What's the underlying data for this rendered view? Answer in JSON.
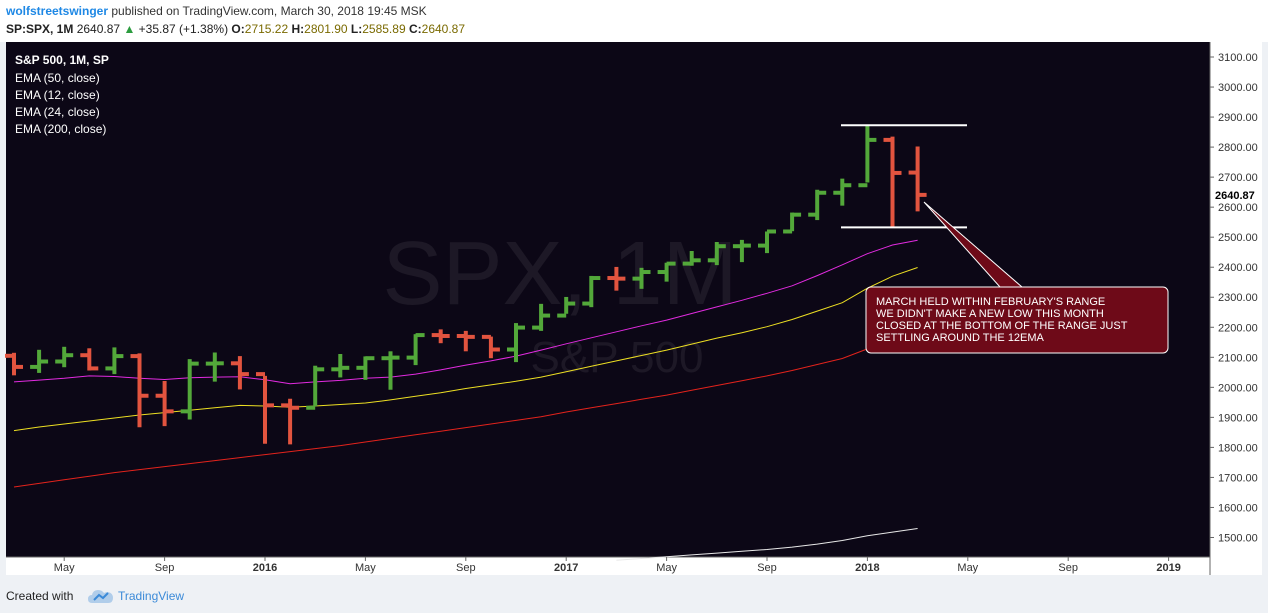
{
  "header": {
    "publisher": "wolfstreetswinger",
    "published_text": "published on TradingView.com, March 30, 2018 19:45 MSK",
    "symbol_line": "SP:SPX, 1M",
    "last": "2640.87",
    "change_arrow": "▲",
    "change": "+35.87 (+1.38%)",
    "o_label": "O:",
    "o_val": "2715.22",
    "h_label": "H:",
    "h_val": "2801.90",
    "l_label": "L:",
    "l_val": "2585.89",
    "c_label": "C:",
    "c_val": "2640.87"
  },
  "legend": {
    "title": "S&P 500, 1M, SP",
    "items": [
      "EMA (50, close)",
      "EMA (12, close)",
      "EMA (24, close)",
      "EMA (200, close)"
    ]
  },
  "watermark": {
    "big": "SPX, 1M",
    "small": "S&P 500"
  },
  "annotation": {
    "text": [
      "MARCH HELD WITHIN FEBRUARY'S RANGE",
      "WE DIDN'T MAKE A NEW LOW THIS MONTH",
      "CLOSED AT THE BOTTOM OF THE RANGE JUST",
      "SETTLING AROUND THE 12EMA"
    ]
  },
  "footer": {
    "created_with": "Created with",
    "brand": "TradingView"
  },
  "colors": {
    "background": "#0c0716",
    "up": "#53a83a",
    "down": "#e2543f",
    "ema12": "#e22be0",
    "ema24": "#eddf23",
    "ema50": "#e3231c",
    "ema200": "#e8e8e8",
    "annotation_bg": "#6e0a18"
  },
  "chart_data": {
    "type": "bar",
    "interval": "1M",
    "y_axis_labels": [
      "3100.00",
      "3000.00",
      "2900.00",
      "2800.00",
      "2700.00",
      "2600.00",
      "2500.00",
      "2400.00",
      "2300.00",
      "2200.00",
      "2100.00",
      "2000.00",
      "1900.00",
      "1800.00",
      "1700.00",
      "1600.00",
      "1500.00"
    ],
    "last_price_label": "2640.87",
    "x_axis_labels": [
      "May",
      "Sep",
      "2016",
      "May",
      "Sep",
      "2017",
      "May",
      "Sep",
      "2018",
      "May",
      "Sep",
      "2019"
    ],
    "ylim": [
      1435,
      3150
    ],
    "ohlc": [
      {
        "date": "2015-03",
        "o": 2105,
        "h": 2115,
        "l": 2040,
        "c": 2068
      },
      {
        "date": "2015-04",
        "o": 2068,
        "h": 2125,
        "l": 2048,
        "c": 2086
      },
      {
        "date": "2015-05",
        "o": 2086,
        "h": 2135,
        "l": 2067,
        "c": 2107
      },
      {
        "date": "2015-06",
        "o": 2107,
        "h": 2130,
        "l": 2056,
        "c": 2063
      },
      {
        "date": "2015-07",
        "o": 2063,
        "h": 2133,
        "l": 2044,
        "c": 2104
      },
      {
        "date": "2015-08",
        "o": 2104,
        "h": 2113,
        "l": 1867,
        "c": 1972
      },
      {
        "date": "2015-09",
        "o": 1972,
        "h": 2021,
        "l": 1871,
        "c": 1920
      },
      {
        "date": "2015-10",
        "o": 1920,
        "h": 2094,
        "l": 1893,
        "c": 2079
      },
      {
        "date": "2015-11",
        "o": 2079,
        "h": 2116,
        "l": 2019,
        "c": 2080
      },
      {
        "date": "2015-12",
        "o": 2080,
        "h": 2104,
        "l": 1993,
        "c": 2044
      },
      {
        "date": "2016-01",
        "o": 2044,
        "h": 2038,
        "l": 1812,
        "c": 1940
      },
      {
        "date": "2016-02",
        "o": 1940,
        "h": 1962,
        "l": 1810,
        "c": 1932
      },
      {
        "date": "2016-03",
        "o": 1932,
        "h": 2072,
        "l": 1937,
        "c": 2060
      },
      {
        "date": "2016-04",
        "o": 2060,
        "h": 2111,
        "l": 2033,
        "c": 2065
      },
      {
        "date": "2016-05",
        "o": 2065,
        "h": 2103,
        "l": 2025,
        "c": 2097
      },
      {
        "date": "2016-06",
        "o": 2097,
        "h": 2120,
        "l": 1992,
        "c": 2099
      },
      {
        "date": "2016-07",
        "o": 2099,
        "h": 2177,
        "l": 2074,
        "c": 2174
      },
      {
        "date": "2016-08",
        "o": 2174,
        "h": 2193,
        "l": 2147,
        "c": 2171
      },
      {
        "date": "2016-09",
        "o": 2171,
        "h": 2188,
        "l": 2120,
        "c": 2168
      },
      {
        "date": "2016-10",
        "o": 2168,
        "h": 2169,
        "l": 2097,
        "c": 2126
      },
      {
        "date": "2016-11",
        "o": 2126,
        "h": 2214,
        "l": 2084,
        "c": 2199
      },
      {
        "date": "2016-12",
        "o": 2199,
        "h": 2278,
        "l": 2188,
        "c": 2239
      },
      {
        "date": "2017-01",
        "o": 2239,
        "h": 2301,
        "l": 2245,
        "c": 2279
      },
      {
        "date": "2017-02",
        "o": 2279,
        "h": 2371,
        "l": 2267,
        "c": 2364
      },
      {
        "date": "2017-03",
        "o": 2364,
        "h": 2401,
        "l": 2322,
        "c": 2362
      },
      {
        "date": "2017-04",
        "o": 2362,
        "h": 2398,
        "l": 2328,
        "c": 2384
      },
      {
        "date": "2017-05",
        "o": 2384,
        "h": 2415,
        "l": 2352,
        "c": 2412
      },
      {
        "date": "2017-06",
        "o": 2412,
        "h": 2454,
        "l": 2405,
        "c": 2423
      },
      {
        "date": "2017-07",
        "o": 2423,
        "h": 2484,
        "l": 2407,
        "c": 2470
      },
      {
        "date": "2017-08",
        "o": 2470,
        "h": 2491,
        "l": 2417,
        "c": 2472
      },
      {
        "date": "2017-09",
        "o": 2472,
        "h": 2519,
        "l": 2447,
        "c": 2519
      },
      {
        "date": "2017-10",
        "o": 2519,
        "h": 2582,
        "l": 2520,
        "c": 2575
      },
      {
        "date": "2017-11",
        "o": 2575,
        "h": 2658,
        "l": 2557,
        "c": 2648
      },
      {
        "date": "2017-12",
        "o": 2648,
        "h": 2695,
        "l": 2605,
        "c": 2673
      },
      {
        "date": "2018-01",
        "o": 2673,
        "h": 2873,
        "l": 2682,
        "c": 2824
      },
      {
        "date": "2018-02",
        "o": 2824,
        "h": 2835,
        "l": 2533,
        "c": 2714
      },
      {
        "date": "2018-03",
        "o": 2715.22,
        "h": 2801.9,
        "l": 2585.89,
        "c": 2640.87
      }
    ],
    "ema12": [
      2018,
      2024,
      2030,
      2038,
      2036,
      2030,
      2026,
      2032,
      2034,
      2035,
      2025,
      2012,
      2018,
      2023,
      2030,
      2034,
      2044,
      2058,
      2074,
      2088,
      2104,
      2124,
      2145,
      2165,
      2185,
      2205,
      2224,
      2246,
      2268,
      2290,
      2313,
      2338,
      2372,
      2408,
      2445,
      2474,
      2490
    ],
    "ema24": [
      1856,
      1868,
      1878,
      1888,
      1898,
      1908,
      1916,
      1924,
      1932,
      1940,
      1938,
      1934,
      1938,
      1943,
      1948,
      1958,
      1970,
      1982,
      1996,
      2008,
      2020,
      2034,
      2052,
      2070,
      2088,
      2106,
      2124,
      2144,
      2164,
      2182,
      2202,
      2226,
      2254,
      2282,
      2330,
      2370,
      2399
    ],
    "ema50": [
      1668,
      1680,
      1692,
      1704,
      1716,
      1726,
      1736,
      1746,
      1756,
      1766,
      1776,
      1786,
      1796,
      1806,
      1818,
      1830,
      1842,
      1854,
      1866,
      1878,
      1890,
      1902,
      1918,
      1932,
      1946,
      1960,
      1974,
      1990,
      2006,
      2022,
      2038,
      2056,
      2076,
      2096,
      2128,
      2154,
      2175
    ],
    "ema200": [
      null,
      null,
      null,
      null,
      null,
      null,
      null,
      null,
      null,
      null,
      null,
      null,
      null,
      null,
      null,
      null,
      null,
      null,
      null,
      null,
      null,
      null,
      null,
      null,
      1424,
      1430,
      1436,
      1442,
      1448,
      1454,
      1460,
      1468,
      1478,
      1490,
      1506,
      1518,
      1530
    ],
    "range_lines": [
      2872.87,
      2532.69
    ]
  }
}
